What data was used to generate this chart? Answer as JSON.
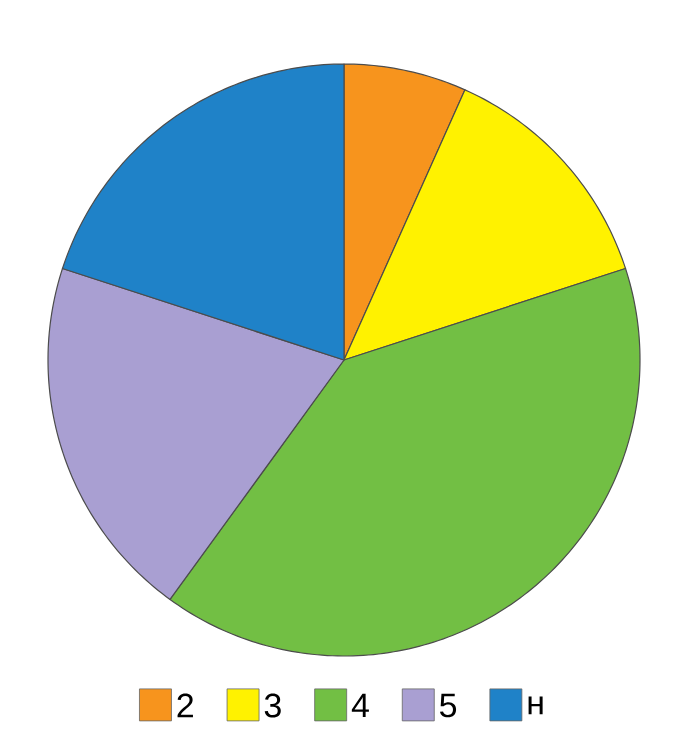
{
  "chart_data": {
    "type": "pie",
    "categories": [
      "2",
      "3",
      "4",
      "5",
      "н"
    ],
    "values": [
      6.7,
      13.3,
      40,
      20,
      20
    ],
    "colors": [
      "#f7941d",
      "#fff200",
      "#72bf44",
      "#a99fd2",
      "#1f82c8"
    ],
    "legend": "bottom"
  }
}
